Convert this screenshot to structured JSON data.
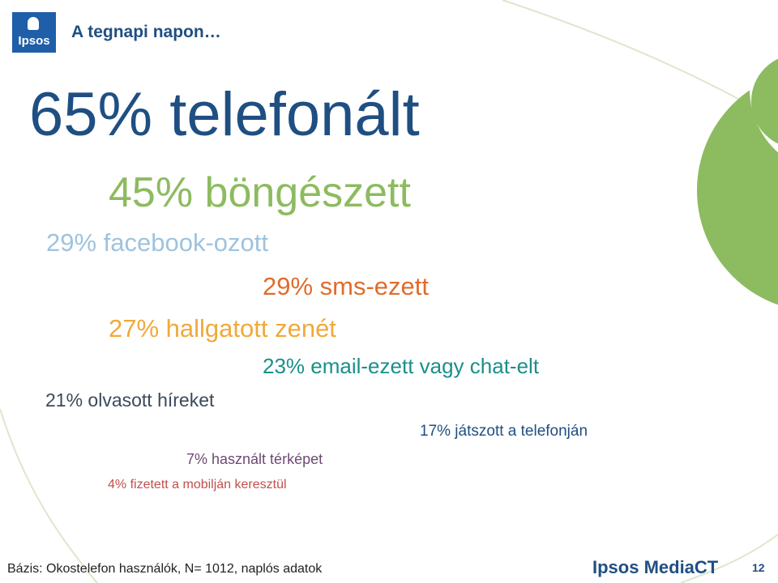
{
  "logo": {
    "text": "Ipsos"
  },
  "header": {
    "title": "A tegnapi napon…"
  },
  "stats": [
    {
      "text": "65% telefonált"
    },
    {
      "text": "45% böngészett"
    },
    {
      "text": "29% facebook-ozott"
    },
    {
      "text": "29% sms-ezett"
    },
    {
      "text": "27% hallgatott zenét"
    },
    {
      "text": "23% email-ezett vagy chat-elt"
    },
    {
      "text": "21% olvasott híreket"
    },
    {
      "text": "17% játszott a telefonján"
    },
    {
      "text": "7% használt térképet"
    },
    {
      "text": "4% fizetett a mobilján keresztül"
    }
  ],
  "footer": {
    "base": "Bázis: Okostelefon használók, N= 1012, naplós adatok",
    "brand": "Ipsos MediaCT",
    "page_number": "12"
  },
  "colors": {
    "navy": "#1f4f82",
    "green": "#8dbb5f",
    "light_blue": "#9ec3de",
    "orange": "#e06c2c",
    "amber": "#f0a93a",
    "teal": "#1b8f8a",
    "purple": "#6e4a72",
    "red": "#c0504d"
  }
}
